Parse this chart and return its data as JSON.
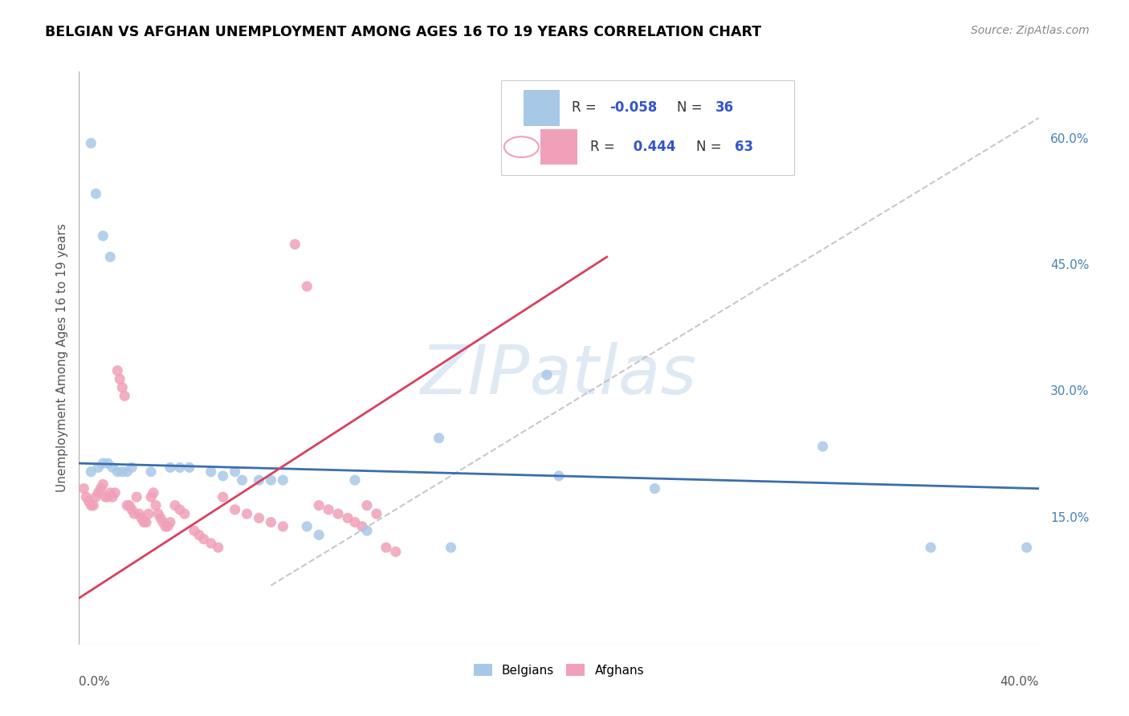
{
  "title": "BELGIAN VS AFGHAN UNEMPLOYMENT AMONG AGES 16 TO 19 YEARS CORRELATION CHART",
  "source": "Source: ZipAtlas.com",
  "ylabel": "Unemployment Among Ages 16 to 19 years",
  "xmin": 0.0,
  "xmax": 0.4,
  "ymin": 0.0,
  "ymax": 0.68,
  "watermark": "ZIPatlas",
  "belgian_color": "#a8c8e8",
  "afghan_color": "#f0a0b8",
  "belgian_trend_color": "#3a6faf",
  "afghan_trend_color": "#d94060",
  "belgian_dots": [
    [
      0.005,
      0.595
    ],
    [
      0.007,
      0.535
    ],
    [
      0.01,
      0.485
    ],
    [
      0.013,
      0.46
    ],
    [
      0.005,
      0.205
    ],
    [
      0.008,
      0.21
    ],
    [
      0.01,
      0.215
    ],
    [
      0.012,
      0.215
    ],
    [
      0.014,
      0.21
    ],
    [
      0.016,
      0.205
    ],
    [
      0.018,
      0.205
    ],
    [
      0.02,
      0.205
    ],
    [
      0.022,
      0.21
    ],
    [
      0.03,
      0.205
    ],
    [
      0.038,
      0.21
    ],
    [
      0.042,
      0.21
    ],
    [
      0.046,
      0.21
    ],
    [
      0.055,
      0.205
    ],
    [
      0.06,
      0.2
    ],
    [
      0.065,
      0.205
    ],
    [
      0.068,
      0.195
    ],
    [
      0.075,
      0.195
    ],
    [
      0.08,
      0.195
    ],
    [
      0.085,
      0.195
    ],
    [
      0.095,
      0.14
    ],
    [
      0.1,
      0.13
    ],
    [
      0.115,
      0.195
    ],
    [
      0.12,
      0.135
    ],
    [
      0.15,
      0.245
    ],
    [
      0.155,
      0.115
    ],
    [
      0.195,
      0.32
    ],
    [
      0.2,
      0.2
    ],
    [
      0.24,
      0.185
    ],
    [
      0.31,
      0.235
    ],
    [
      0.355,
      0.115
    ],
    [
      0.395,
      0.115
    ]
  ],
  "afghan_dots": [
    [
      0.002,
      0.185
    ],
    [
      0.003,
      0.175
    ],
    [
      0.004,
      0.17
    ],
    [
      0.005,
      0.165
    ],
    [
      0.006,
      0.165
    ],
    [
      0.007,
      0.175
    ],
    [
      0.008,
      0.18
    ],
    [
      0.009,
      0.185
    ],
    [
      0.01,
      0.19
    ],
    [
      0.011,
      0.175
    ],
    [
      0.012,
      0.175
    ],
    [
      0.013,
      0.18
    ],
    [
      0.014,
      0.175
    ],
    [
      0.015,
      0.18
    ],
    [
      0.016,
      0.325
    ],
    [
      0.017,
      0.315
    ],
    [
      0.018,
      0.305
    ],
    [
      0.019,
      0.295
    ],
    [
      0.02,
      0.165
    ],
    [
      0.021,
      0.165
    ],
    [
      0.022,
      0.16
    ],
    [
      0.023,
      0.155
    ],
    [
      0.024,
      0.175
    ],
    [
      0.025,
      0.155
    ],
    [
      0.026,
      0.15
    ],
    [
      0.027,
      0.145
    ],
    [
      0.028,
      0.145
    ],
    [
      0.029,
      0.155
    ],
    [
      0.03,
      0.175
    ],
    [
      0.031,
      0.18
    ],
    [
      0.032,
      0.165
    ],
    [
      0.033,
      0.155
    ],
    [
      0.034,
      0.15
    ],
    [
      0.035,
      0.145
    ],
    [
      0.036,
      0.14
    ],
    [
      0.037,
      0.14
    ],
    [
      0.038,
      0.145
    ],
    [
      0.04,
      0.165
    ],
    [
      0.042,
      0.16
    ],
    [
      0.044,
      0.155
    ],
    [
      0.048,
      0.135
    ],
    [
      0.05,
      0.13
    ],
    [
      0.052,
      0.125
    ],
    [
      0.055,
      0.12
    ],
    [
      0.058,
      0.115
    ],
    [
      0.06,
      0.175
    ],
    [
      0.065,
      0.16
    ],
    [
      0.07,
      0.155
    ],
    [
      0.075,
      0.15
    ],
    [
      0.08,
      0.145
    ],
    [
      0.085,
      0.14
    ],
    [
      0.09,
      0.475
    ],
    [
      0.095,
      0.425
    ],
    [
      0.1,
      0.165
    ],
    [
      0.104,
      0.16
    ],
    [
      0.108,
      0.155
    ],
    [
      0.112,
      0.15
    ],
    [
      0.115,
      0.145
    ],
    [
      0.118,
      0.14
    ],
    [
      0.12,
      0.165
    ],
    [
      0.124,
      0.155
    ],
    [
      0.128,
      0.115
    ],
    [
      0.132,
      0.11
    ]
  ]
}
